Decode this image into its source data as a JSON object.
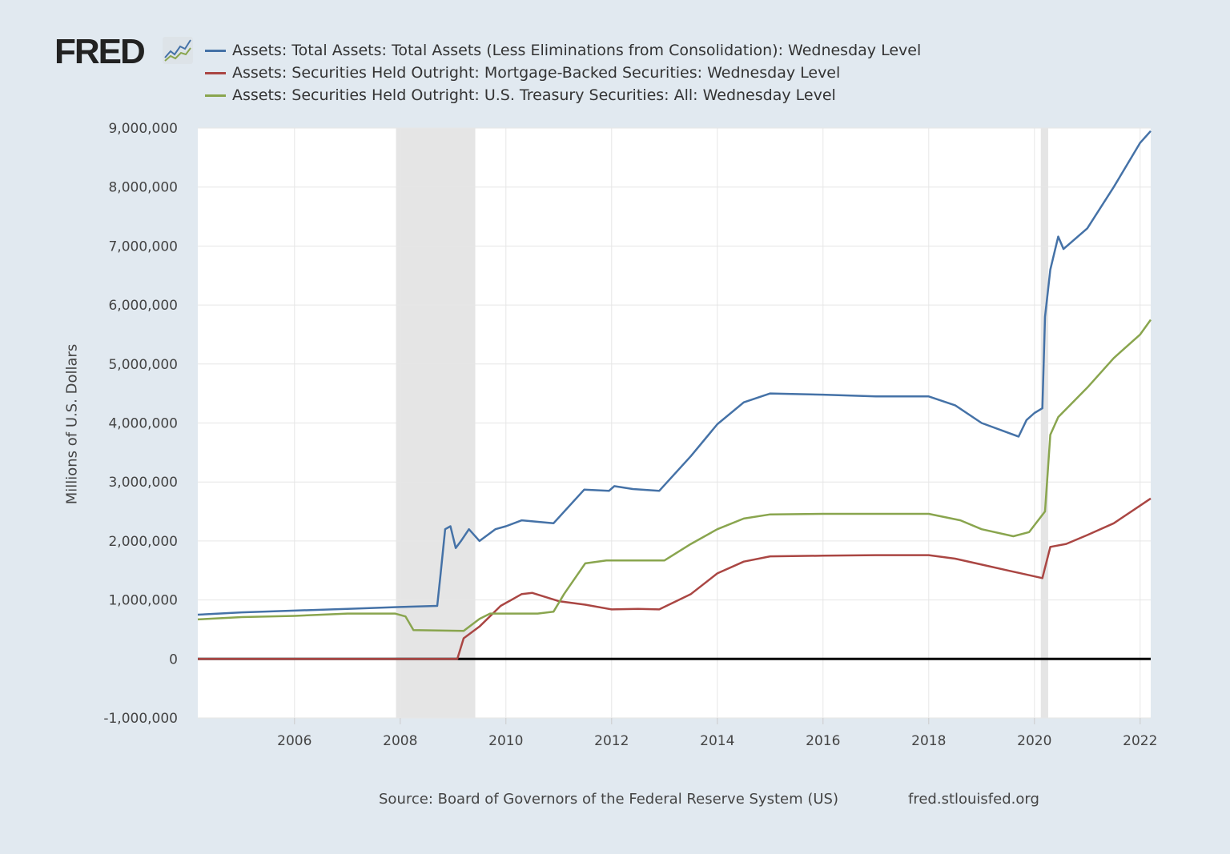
{
  "logo": {
    "text": "FRED",
    "icon": "chart-line-icon"
  },
  "legend": [
    {
      "label": "Assets: Total Assets: Total Assets (Less Eliminations from Consolidation): Wednesday Level",
      "color": "#4572a7"
    },
    {
      "label": "Assets: Securities Held Outright: Mortgage-Backed Securities: Wednesday Level",
      "color": "#aa4643"
    },
    {
      "label": "Assets: Securities Held Outright: U.S. Treasury Securities: All: Wednesday Level",
      "color": "#89a54e"
    }
  ],
  "footer": {
    "source": "Source: Board of Governors of the Federal Reserve System (US)",
    "url": "fred.stlouisfed.org"
  },
  "chart_data": {
    "type": "line",
    "title": "",
    "xlabel": "",
    "ylabel": "Millions of U.S. Dollars",
    "xlim": [
      2004.17,
      2022.2
    ],
    "ylim": [
      -1000000,
      9000000
    ],
    "grid": true,
    "legend_position": "top",
    "x_ticks": [
      2006,
      2008,
      2010,
      2012,
      2014,
      2016,
      2018,
      2020,
      2022
    ],
    "x_tick_labels": [
      "2006",
      "2008",
      "2010",
      "2012",
      "2014",
      "2016",
      "2018",
      "2020",
      "2022"
    ],
    "y_ticks": [
      -1000000,
      0,
      1000000,
      2000000,
      3000000,
      4000000,
      5000000,
      6000000,
      7000000,
      8000000,
      9000000
    ],
    "y_tick_labels": [
      "-1,000,000",
      "0",
      "1,000,000",
      "2,000,000",
      "3,000,000",
      "4,000,000",
      "5,000,000",
      "6,000,000",
      "7,000,000",
      "8,000,000",
      "9,000,000"
    ],
    "recessions": [
      [
        2007.92,
        2009.42
      ],
      [
        2020.12,
        2020.26
      ]
    ],
    "series": [
      {
        "name": "Assets: Total Assets: Total Assets (Less Eliminations from Consolidation): Wednesday Level",
        "color": "#4572a7",
        "points": [
          [
            2004.17,
            750000
          ],
          [
            2005,
            790000
          ],
          [
            2006,
            820000
          ],
          [
            2007,
            850000
          ],
          [
            2008,
            880000
          ],
          [
            2008.7,
            900000
          ],
          [
            2008.76,
            1400000
          ],
          [
            2008.85,
            2200000
          ],
          [
            2008.95,
            2250000
          ],
          [
            2009.05,
            1880000
          ],
          [
            2009.15,
            2000000
          ],
          [
            2009.3,
            2200000
          ],
          [
            2009.5,
            2000000
          ],
          [
            2009.8,
            2200000
          ],
          [
            2010,
            2250000
          ],
          [
            2010.3,
            2350000
          ],
          [
            2010.9,
            2300000
          ],
          [
            2011.48,
            2870000
          ],
          [
            2011.95,
            2850000
          ],
          [
            2012.05,
            2930000
          ],
          [
            2012.4,
            2880000
          ],
          [
            2012.9,
            2850000
          ],
          [
            2013.5,
            3440000
          ],
          [
            2014,
            3980000
          ],
          [
            2014.5,
            4350000
          ],
          [
            2015,
            4500000
          ],
          [
            2016,
            4480000
          ],
          [
            2017,
            4450000
          ],
          [
            2018,
            4450000
          ],
          [
            2018.5,
            4300000
          ],
          [
            2019,
            4000000
          ],
          [
            2019.7,
            3770000
          ],
          [
            2019.85,
            4050000
          ],
          [
            2020.0,
            4170000
          ],
          [
            2020.15,
            4250000
          ],
          [
            2020.2,
            5800000
          ],
          [
            2020.3,
            6600000
          ],
          [
            2020.45,
            7160000
          ],
          [
            2020.55,
            6950000
          ],
          [
            2021,
            7300000
          ],
          [
            2021.5,
            8000000
          ],
          [
            2022,
            8750000
          ],
          [
            2022.2,
            8950000
          ]
        ]
      },
      {
        "name": "Assets: Securities Held Outright: Mortgage-Backed Securities: Wednesday Level",
        "color": "#aa4643",
        "points": [
          [
            2004.17,
            0
          ],
          [
            2009.08,
            0
          ],
          [
            2009.2,
            350000
          ],
          [
            2009.5,
            550000
          ],
          [
            2009.9,
            900000
          ],
          [
            2010.3,
            1100000
          ],
          [
            2010.5,
            1120000
          ],
          [
            2011,
            980000
          ],
          [
            2011.5,
            920000
          ],
          [
            2012,
            840000
          ],
          [
            2012.5,
            850000
          ],
          [
            2012.9,
            840000
          ],
          [
            2013.5,
            1100000
          ],
          [
            2014,
            1450000
          ],
          [
            2014.5,
            1650000
          ],
          [
            2015,
            1740000
          ],
          [
            2016,
            1750000
          ],
          [
            2017,
            1760000
          ],
          [
            2018,
            1760000
          ],
          [
            2018.5,
            1700000
          ],
          [
            2019,
            1600000
          ],
          [
            2019.5,
            1500000
          ],
          [
            2020.15,
            1370000
          ],
          [
            2020.3,
            1900000
          ],
          [
            2020.6,
            1950000
          ],
          [
            2021,
            2100000
          ],
          [
            2021.5,
            2300000
          ],
          [
            2022,
            2600000
          ],
          [
            2022.2,
            2720000
          ]
        ]
      },
      {
        "name": "Assets: Securities Held Outright: U.S. Treasury Securities: All: Wednesday Level",
        "color": "#89a54e",
        "points": [
          [
            2004.17,
            670000
          ],
          [
            2005,
            710000
          ],
          [
            2006,
            730000
          ],
          [
            2007,
            770000
          ],
          [
            2007.9,
            770000
          ],
          [
            2008.1,
            720000
          ],
          [
            2008.25,
            490000
          ],
          [
            2009.2,
            475000
          ],
          [
            2009.5,
            680000
          ],
          [
            2009.7,
            770000
          ],
          [
            2010.6,
            770000
          ],
          [
            2010.9,
            800000
          ],
          [
            2011.1,
            1100000
          ],
          [
            2011.5,
            1620000
          ],
          [
            2011.9,
            1670000
          ],
          [
            2012.5,
            1670000
          ],
          [
            2013,
            1670000
          ],
          [
            2013.5,
            1950000
          ],
          [
            2014,
            2200000
          ],
          [
            2014.5,
            2380000
          ],
          [
            2015,
            2450000
          ],
          [
            2016,
            2460000
          ],
          [
            2018,
            2460000
          ],
          [
            2018.6,
            2350000
          ],
          [
            2019,
            2200000
          ],
          [
            2019.6,
            2080000
          ],
          [
            2019.9,
            2150000
          ],
          [
            2020.2,
            2500000
          ],
          [
            2020.3,
            3800000
          ],
          [
            2020.45,
            4100000
          ],
          [
            2021,
            4600000
          ],
          [
            2021.5,
            5100000
          ],
          [
            2022,
            5500000
          ],
          [
            2022.2,
            5750000
          ]
        ]
      }
    ]
  }
}
